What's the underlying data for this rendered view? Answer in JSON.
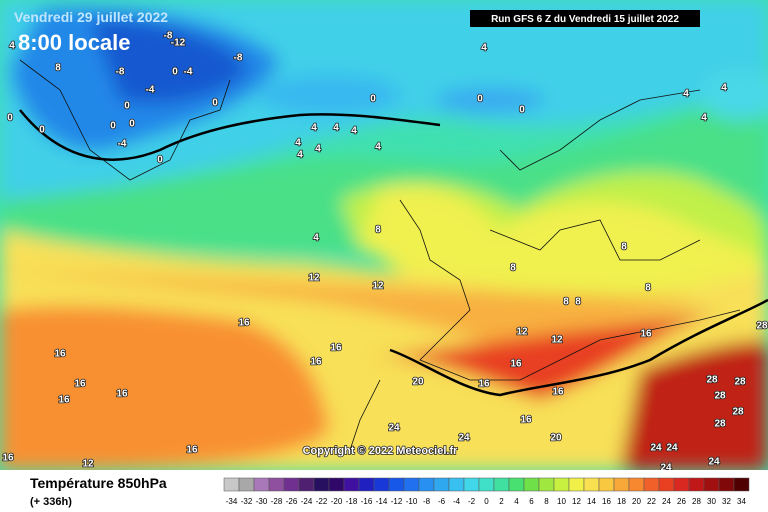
{
  "header": {
    "date": "Vendredi 29 juillet 2022",
    "time": "8:00 locale",
    "run": "Run GFS 6 Z du Vendredi 15 juillet 2022"
  },
  "copyright": "Copyright © 2022 Meteociel.fr",
  "footer": {
    "title": "Température 850hPa",
    "lead": "(+ 336h)"
  },
  "legend": {
    "ticks": [
      -34,
      -32,
      -30,
      -28,
      -26,
      -24,
      -22,
      -20,
      -18,
      -16,
      -14,
      -12,
      -10,
      -8,
      -6,
      -4,
      -2,
      0,
      2,
      4,
      6,
      8,
      10,
      12,
      14,
      16,
      18,
      20,
      22,
      24,
      26,
      28,
      30,
      32,
      34
    ],
    "colors": [
      "#c8c8c8",
      "#a8a8a8",
      "#a878b8",
      "#9050a0",
      "#703090",
      "#502070",
      "#281060",
      "#300868",
      "#4010a0",
      "#2020c0",
      "#1838d8",
      "#1858e8",
      "#2070f0",
      "#2890f0",
      "#30a8f0",
      "#38c0f0",
      "#40d8e8",
      "#40e0c8",
      "#40e0a0",
      "#48e070",
      "#70e048",
      "#a0e840",
      "#c8f040",
      "#f0f048",
      "#f8e050",
      "#f8c840",
      "#f8a838",
      "#f88830",
      "#f06028",
      "#e84020",
      "#d82820",
      "#c01818",
      "#a01010",
      "#800808",
      "#500000"
    ]
  },
  "contour_labels": [
    -8,
    -12,
    -8,
    4,
    8,
    -8,
    0,
    -4,
    -4,
    0,
    0,
    0,
    0,
    0,
    0,
    0,
    0,
    0,
    -4,
    0,
    4,
    4,
    4,
    4,
    4,
    4,
    4,
    4,
    4,
    4,
    4,
    4,
    8,
    8,
    8,
    8,
    8,
    8,
    12,
    12,
    12,
    12,
    16,
    16,
    16,
    16,
    16,
    16,
    16,
    16,
    16,
    16,
    16,
    16,
    12,
    16,
    16,
    20,
    20,
    24,
    24,
    24,
    24,
    24,
    24,
    28,
    28,
    28,
    28,
    28,
    28,
    24
  ]
}
